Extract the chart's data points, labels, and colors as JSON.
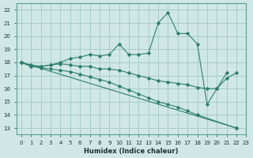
{
  "title": "",
  "xlabel": "Humidex (Indice chaleur)",
  "ylabel": "",
  "bg_color": "#cfe8e5",
  "grid_color": "#a8ccc8",
  "line_color": "#2e7d6e",
  "xlim": [
    -0.5,
    23
  ],
  "ylim": [
    12.5,
    22.5
  ],
  "xticks": [
    0,
    1,
    2,
    3,
    4,
    5,
    6,
    7,
    8,
    9,
    10,
    11,
    12,
    13,
    14,
    15,
    16,
    17,
    18,
    19,
    20,
    21,
    22,
    23
  ],
  "yticks": [
    13,
    14,
    15,
    16,
    17,
    18,
    19,
    20,
    21,
    22
  ],
  "series": [
    {
      "x": [
        0,
        1,
        2,
        3,
        4,
        5,
        6,
        7,
        8,
        9,
        10,
        11,
        12,
        13,
        14,
        15,
        16,
        17,
        18,
        19,
        20,
        21
      ],
      "y": [
        18.0,
        17.8,
        17.7,
        17.8,
        18.0,
        18.3,
        18.4,
        18.6,
        18.5,
        18.6,
        19.4,
        18.6,
        18.6,
        18.7,
        21.0,
        21.8,
        20.2,
        20.2,
        19.4,
        14.8,
        16.0,
        17.2
      ]
    },
    {
      "x": [
        0,
        1,
        2,
        3,
        4,
        5,
        6,
        7,
        8,
        9,
        10,
        11,
        12,
        13,
        14,
        15,
        16,
        17,
        18,
        19,
        20,
        21,
        22
      ],
      "y": [
        18.0,
        17.7,
        17.7,
        17.8,
        17.9,
        17.8,
        17.7,
        17.7,
        17.5,
        17.5,
        17.4,
        17.2,
        17.0,
        16.8,
        16.6,
        16.5,
        16.4,
        16.3,
        16.1,
        16.0,
        16.0,
        16.8,
        17.2
      ]
    },
    {
      "x": [
        0,
        1,
        2,
        3,
        4,
        5,
        6,
        7,
        8,
        9,
        10,
        11,
        12,
        13,
        14,
        15,
        16,
        17,
        18,
        22
      ],
      "y": [
        18.0,
        17.7,
        17.6,
        17.5,
        17.4,
        17.3,
        17.1,
        16.9,
        16.7,
        16.5,
        16.2,
        15.9,
        15.6,
        15.3,
        15.0,
        14.8,
        14.6,
        14.3,
        14.0,
        13.0
      ]
    },
    {
      "x": [
        0,
        22
      ],
      "y": [
        18.0,
        13.0
      ]
    }
  ]
}
